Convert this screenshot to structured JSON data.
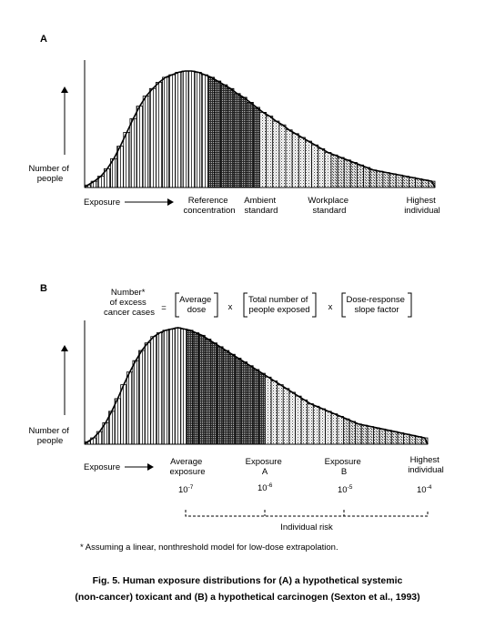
{
  "figure": {
    "caption_line1": "Fig. 5.  Human exposure distributions for (A) a hypothetical systemic",
    "caption_line2": "(non-cancer) toxicant and (B) a hypothetical carcinogen (Sexton et al., 1993)",
    "footnote": "* Assuming a linear, nonthreshold model for low-dose extrapolation."
  },
  "panelA": {
    "letter": "A",
    "ylabel_line1": "Number of",
    "ylabel_line2": "people",
    "xlabel": "Exposure",
    "markers": [
      {
        "line1": "Reference",
        "line2": "concentration"
      },
      {
        "line1": "Ambient",
        "line2": "standard"
      },
      {
        "line1": "Workplace",
        "line2": "standard"
      },
      {
        "line1": "Highest",
        "line2": "individual"
      }
    ]
  },
  "panelB": {
    "letter": "B",
    "ylabel_line1": "Number of",
    "ylabel_line2": "people",
    "xlabel": "Exposure",
    "equation": {
      "lhs_line1": "Number*",
      "lhs_line2": "of excess",
      "lhs_line3": "cancer cases",
      "equals": "=",
      "term1_line1": "Average",
      "term1_line2": "dose",
      "times1": "x",
      "term2_line1": "Total number of",
      "term2_line2": "people exposed",
      "times2": "x",
      "term3_line1": "Dose-response",
      "term3_line2": "slope factor"
    },
    "markers": [
      {
        "line1": "Average",
        "line2": "exposure"
      },
      {
        "line1": "Exposure",
        "line2": "A"
      },
      {
        "line1": "Exposure",
        "line2": "B"
      },
      {
        "line1": "Highest",
        "line2": "individual"
      }
    ],
    "risk_levels": [
      {
        "base": "10",
        "exp": "-7"
      },
      {
        "base": "10",
        "exp": "-6"
      },
      {
        "base": "10",
        "exp": "-5"
      },
      {
        "base": "10",
        "exp": "-4"
      }
    ],
    "risk_label": "Individual risk"
  },
  "chart_data": [
    {
      "type": "bar",
      "panel": "A",
      "values": [
        2,
        5,
        9,
        15,
        23,
        33,
        44,
        55,
        65,
        73,
        79,
        84,
        88,
        90,
        92,
        93,
        93,
        92,
        90,
        88,
        85,
        82,
        79,
        75,
        72,
        68,
        64,
        60,
        57,
        53,
        50,
        46,
        43,
        40,
        37,
        34,
        31,
        28,
        26,
        24,
        22,
        20,
        18,
        16,
        14,
        13,
        12,
        11,
        10,
        9,
        8,
        7,
        6,
        5
      ],
      "regions": [
        "reference concentration",
        "ambient standard",
        "workplace standard",
        "highest individual"
      ],
      "xlabel": "Exposure",
      "ylabel": "Number of people"
    },
    {
      "type": "bar",
      "panel": "B",
      "values": [
        2,
        5,
        10,
        17,
        26,
        36,
        47,
        57,
        66,
        74,
        80,
        85,
        88,
        90,
        91,
        92,
        91,
        90,
        88,
        86,
        83,
        80,
        77,
        74,
        71,
        68,
        65,
        62,
        59,
        56,
        53,
        50,
        47,
        44,
        41,
        38,
        35,
        32,
        30,
        28,
        26,
        24,
        22,
        20,
        18,
        16,
        15,
        14,
        13,
        12,
        11,
        10,
        9,
        8,
        7,
        6,
        5
      ],
      "regions": [
        "average exposure",
        "exposure A",
        "exposure B",
        "highest individual"
      ],
      "xlabel": "Exposure",
      "ylabel": "Number of people"
    }
  ]
}
